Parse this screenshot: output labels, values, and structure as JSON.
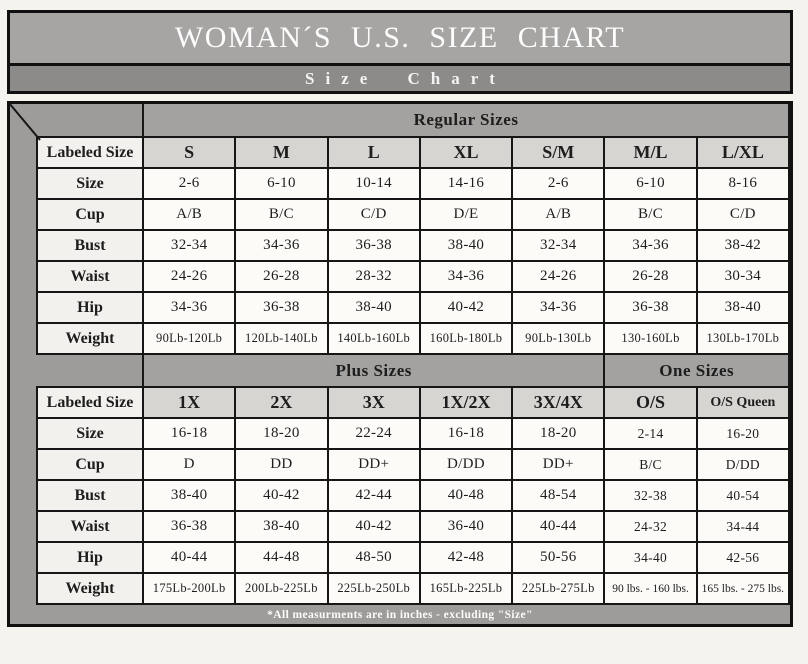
{
  "page": {
    "title": "WOMAN´S U.S. SIZE CHART",
    "subtitle": "Size Chart",
    "footnote": "*All measurments are in inches - excluding \"Size\""
  },
  "colors": {
    "page_bg": "#f5f3ee",
    "title_bg": "#a7a5a4",
    "subtitle_bg": "#8d8b8a",
    "frame_bg": "#9e9c9a",
    "band_bg": "#a4a2a0",
    "colhead_bg": "#d7d5d2",
    "label_bg": "#f3f1ed",
    "cell_bg": "#fcfbf8",
    "line": "#161616"
  },
  "chart_data": [
    {
      "type": "table",
      "band_labels": [
        {
          "label": "Regular Sizes",
          "span": 7
        }
      ],
      "header_label": "Labeled Size",
      "columns": [
        "S",
        "M",
        "L",
        "XL",
        "S/M",
        "M/L",
        "L/XL"
      ],
      "rows": [
        {
          "label": "Size",
          "values": [
            "2-6",
            "6-10",
            "10-14",
            "14-16",
            "2-6",
            "6-10",
            "8-16"
          ]
        },
        {
          "label": "Cup",
          "values": [
            "A/B",
            "B/C",
            "C/D",
            "D/E",
            "A/B",
            "B/C",
            "C/D"
          ]
        },
        {
          "label": "Bust",
          "values": [
            "32-34",
            "34-36",
            "36-38",
            "38-40",
            "32-34",
            "34-36",
            "38-42"
          ]
        },
        {
          "label": "Waist",
          "values": [
            "24-26",
            "26-28",
            "28-32",
            "34-36",
            "24-26",
            "26-28",
            "30-34"
          ]
        },
        {
          "label": "Hip",
          "values": [
            "34-36",
            "36-38",
            "38-40",
            "40-42",
            "34-36",
            "36-38",
            "38-40"
          ]
        },
        {
          "label": "Weight",
          "small": true,
          "values": [
            "90Lb-120Lb",
            "120Lb-140Lb",
            "140Lb-160Lb",
            "160Lb-180Lb",
            "90Lb-130Lb",
            "130-160Lb",
            "130Lb-170Lb"
          ]
        }
      ]
    },
    {
      "type": "table",
      "band_labels": [
        {
          "label": "Plus Sizes",
          "span": 5
        },
        {
          "label": "One Sizes",
          "span": 2
        }
      ],
      "header_label": "Labeled Size",
      "columns": [
        "1X",
        "2X",
        "3X",
        "1X/2X",
        "3X/4X",
        "O/S",
        "O/S Queen"
      ],
      "rows": [
        {
          "label": "Size",
          "values": [
            "16-18",
            "18-20",
            "22-24",
            "16-18",
            "18-20",
            "2-14",
            "16-20"
          ]
        },
        {
          "label": "Cup",
          "values": [
            "D",
            "DD",
            "DD+",
            "D/DD",
            "DD+",
            "B/C",
            "D/DD"
          ]
        },
        {
          "label": "Bust",
          "values": [
            "38-40",
            "40-42",
            "42-44",
            "40-48",
            "48-54",
            "32-38",
            "40-54"
          ]
        },
        {
          "label": "Waist",
          "values": [
            "36-38",
            "38-40",
            "40-42",
            "36-40",
            "40-44",
            "24-32",
            "34-44"
          ]
        },
        {
          "label": "Hip",
          "values": [
            "40-44",
            "44-48",
            "48-50",
            "42-48",
            "50-56",
            "34-40",
            "42-56"
          ]
        },
        {
          "label": "Weight",
          "small": true,
          "values": [
            "175Lb-200Lb",
            "200Lb-225Lb",
            "225Lb-250Lb",
            "165Lb-225Lb",
            "225Lb-275Lb",
            "90 lbs. - 160 lbs.",
            "165 lbs. - 275 lbs."
          ]
        }
      ]
    }
  ]
}
